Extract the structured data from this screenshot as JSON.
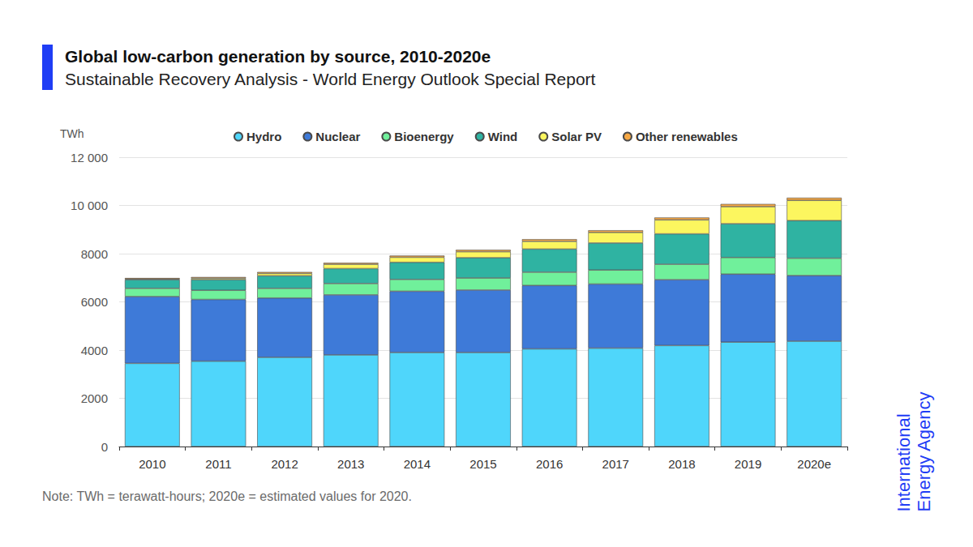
{
  "chart_data": {
    "type": "bar",
    "stacked": true,
    "title": "Global low-carbon generation by source, 2010-2020e",
    "subtitle": "Sustainable Recovery Analysis - World Energy Outlook Special Report",
    "y_label": "TWh",
    "note": "Note: TWh = terawatt-hours; 2020e = estimated values for 2020.",
    "brand": "International Energy Agency",
    "legend": "top",
    "grid": true,
    "categories": [
      "2010",
      "2011",
      "2012",
      "2013",
      "2014",
      "2015",
      "2016",
      "2017",
      "2018",
      "2019",
      "2020e"
    ],
    "series": [
      {
        "name": "Hydro",
        "color": "#4fd6fb",
        "values": [
          3450,
          3540,
          3700,
          3800,
          3900,
          3900,
          4050,
          4080,
          4190,
          4330,
          4370
        ]
      },
      {
        "name": "Nuclear",
        "color": "#3e7ad8",
        "values": [
          2770,
          2560,
          2460,
          2490,
          2540,
          2590,
          2630,
          2660,
          2730,
          2820,
          2720
        ]
      },
      {
        "name": "Bioenergy",
        "color": "#70f09b",
        "values": [
          340,
          380,
          400,
          470,
          490,
          500,
          550,
          580,
          640,
          690,
          720
        ]
      },
      {
        "name": "Wind",
        "color": "#2fb3a2",
        "values": [
          360,
          440,
          520,
          620,
          710,
          840,
          960,
          1120,
          1260,
          1400,
          1560
        ]
      },
      {
        "name": "Solar PV",
        "color": "#fcf65f",
        "values": [
          30,
          60,
          100,
          180,
          210,
          250,
          320,
          440,
          580,
          710,
          840
        ]
      },
      {
        "name": "Other renewables",
        "color": "#f6a844",
        "values": [
          40,
          50,
          60,
          60,
          70,
          80,
          90,
          90,
          100,
          110,
          110
        ]
      }
    ],
    "ylim": [
      0,
      12000
    ],
    "yticks": [
      0,
      2000,
      4000,
      6000,
      8000,
      {
        "value": 10000,
        "label": "10 000"
      },
      {
        "value": 12000,
        "label": "12 000"
      }
    ]
  }
}
